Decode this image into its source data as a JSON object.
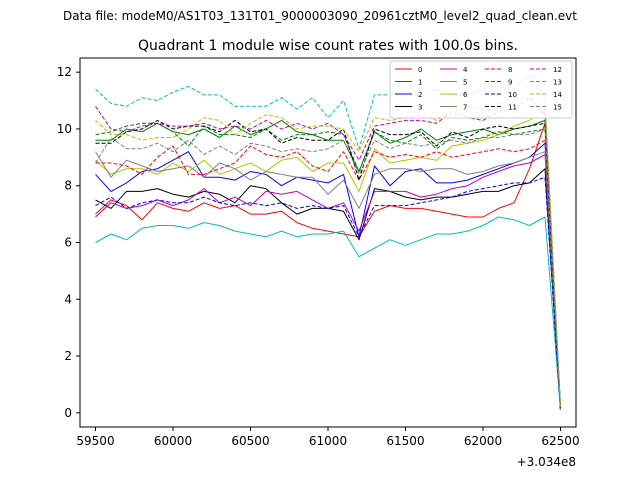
{
  "chart_data": {
    "type": "line",
    "suptitle": "Data file: modeM0/AS1T03_131T01_9000003090_20961cztM0_level2_quad_clean.evt",
    "title": "Quadrant 1 module wise count rates with 100.0s bins.",
    "xlabel": "",
    "ylabel": "",
    "x_offset_label": "+3.034e8",
    "xlim": [
      59400,
      62600
    ],
    "ylim": [
      -0.5,
      12.5
    ],
    "xticks": [
      59500,
      60000,
      60500,
      61000,
      61500,
      62000,
      62500
    ],
    "yticks": [
      0,
      2,
      4,
      6,
      8,
      10,
      12
    ],
    "legend_position": "top-right",
    "x": [
      59500,
      59600,
      59700,
      59800,
      59900,
      60000,
      60100,
      60200,
      60300,
      60400,
      60500,
      60600,
      60700,
      60800,
      60900,
      61000,
      61100,
      61200,
      61300,
      61400,
      61500,
      61600,
      61700,
      61800,
      61900,
      62000,
      62100,
      62200,
      62300,
      62400,
      62500
    ],
    "series": [
      {
        "name": "0",
        "color": "#ff0000",
        "dash": false,
        "values": [
          7.0,
          7.5,
          7.3,
          6.8,
          7.4,
          7.2,
          7.1,
          7.4,
          7.2,
          7.3,
          7.0,
          7.0,
          7.1,
          6.7,
          6.5,
          6.4,
          6.3,
          6.2,
          7.1,
          7.3,
          7.2,
          7.2,
          7.1,
          7.0,
          6.9,
          6.9,
          7.2,
          7.4,
          8.6,
          10.2,
          0.2
        ]
      },
      {
        "name": "1",
        "color": "#008000",
        "dash": false,
        "values": [
          9.6,
          9.6,
          10.0,
          9.9,
          10.2,
          9.9,
          9.8,
          10.0,
          9.7,
          10.1,
          9.8,
          10.0,
          10.3,
          9.9,
          9.8,
          9.6,
          9.6,
          8.5,
          9.9,
          9.5,
          9.7,
          10.0,
          9.6,
          9.8,
          9.9,
          10.0,
          9.8,
          10.0,
          10.1,
          10.3,
          0.2
        ]
      },
      {
        "name": "2",
        "color": "#0000ff",
        "dash": false,
        "values": [
          8.4,
          7.8,
          8.1,
          8.5,
          8.6,
          8.9,
          9.2,
          8.3,
          8.3,
          8.2,
          8.5,
          8.4,
          8.0,
          8.3,
          8.2,
          8.1,
          8.4,
          6.2,
          8.7,
          8.0,
          8.5,
          8.6,
          8.1,
          8.1,
          8.2,
          8.4,
          8.6,
          8.8,
          9.0,
          9.5,
          0.1
        ]
      },
      {
        "name": "3",
        "color": "#000000",
        "dash": false,
        "values": [
          7.5,
          7.2,
          7.8,
          7.8,
          7.9,
          7.7,
          7.6,
          7.8,
          7.7,
          7.4,
          8.0,
          7.9,
          7.4,
          7.0,
          7.2,
          7.2,
          7.1,
          6.1,
          7.9,
          7.8,
          7.6,
          7.5,
          7.6,
          7.6,
          7.7,
          7.8,
          7.8,
          8.0,
          8.1,
          8.6,
          0.1
        ]
      },
      {
        "name": "4",
        "color": "#c000c0",
        "dash": false,
        "values": [
          6.9,
          7.4,
          7.2,
          7.3,
          7.5,
          7.3,
          7.5,
          7.9,
          7.4,
          7.6,
          7.3,
          7.8,
          7.7,
          7.8,
          7.5,
          7.2,
          7.4,
          6.4,
          7.8,
          7.8,
          7.8,
          7.6,
          7.7,
          7.9,
          8.0,
          8.3,
          8.5,
          8.7,
          8.8,
          9.1,
          0.1
        ]
      },
      {
        "name": "5",
        "color": "#00bfbf",
        "dash": false,
        "values": [
          6.0,
          6.3,
          6.1,
          6.5,
          6.6,
          6.6,
          6.5,
          6.7,
          6.6,
          6.4,
          6.3,
          6.2,
          6.4,
          6.2,
          6.3,
          6.3,
          6.4,
          5.5,
          5.8,
          6.1,
          5.9,
          6.1,
          6.3,
          6.3,
          6.4,
          6.6,
          6.9,
          6.8,
          6.6,
          6.9,
          0.1
        ]
      },
      {
        "name": "6",
        "color": "#bfbf00",
        "dash": false,
        "values": [
          8.9,
          8.4,
          8.6,
          8.6,
          8.4,
          8.8,
          8.5,
          8.9,
          8.4,
          8.6,
          8.8,
          8.5,
          8.9,
          9.0,
          8.5,
          8.8,
          8.8,
          7.8,
          9.3,
          8.8,
          8.9,
          9.0,
          8.9,
          9.4,
          9.5,
          9.6,
          9.8,
          10.1,
          10.3,
          10.7,
          0.2
        ]
      },
      {
        "name": "7",
        "color": "#808080",
        "dash": false,
        "values": [
          9.2,
          8.3,
          8.9,
          8.7,
          8.5,
          8.6,
          8.7,
          8.3,
          8.8,
          8.6,
          8.2,
          8.5,
          8.4,
          8.3,
          8.3,
          7.7,
          8.2,
          7.2,
          8.4,
          8.6,
          8.6,
          8.5,
          8.6,
          8.6,
          8.4,
          8.5,
          8.7,
          8.8,
          9.0,
          9.2,
          0.1
        ]
      },
      {
        "name": "8",
        "color": "#ff0000",
        "dash": true,
        "values": [
          8.8,
          8.8,
          8.7,
          8.4,
          9.0,
          9.4,
          8.4,
          8.4,
          8.6,
          8.8,
          9.4,
          9.1,
          9.0,
          9.2,
          8.7,
          8.5,
          9.2,
          8.2,
          9.2,
          9.0,
          9.1,
          9.0,
          9.2,
          9.0,
          9.1,
          9.2,
          9.3,
          9.2,
          9.3,
          9.6,
          0.1
        ]
      },
      {
        "name": "9",
        "color": "#008000",
        "dash": true,
        "values": [
          9.8,
          9.9,
          10.1,
          10.2,
          10.2,
          9.9,
          9.4,
          10.1,
          9.8,
          9.8,
          9.7,
          10.0,
          9.6,
          9.8,
          9.8,
          9.9,
          9.8,
          8.5,
          9.9,
          9.6,
          9.5,
          9.8,
          9.3,
          9.7,
          9.6,
          9.7,
          9.9,
          9.8,
          9.9,
          10.0,
          0.1
        ]
      },
      {
        "name": "10",
        "color": "#0000ff",
        "dash": true,
        "values": [
          7.3,
          7.6,
          7.2,
          7.4,
          7.5,
          7.4,
          7.4,
          7.6,
          7.4,
          7.3,
          7.4,
          7.3,
          7.4,
          7.2,
          7.3,
          7.2,
          7.3,
          6.2,
          7.3,
          7.3,
          7.3,
          7.4,
          7.5,
          7.6,
          7.8,
          7.9,
          8.0,
          8.1,
          8.1,
          8.3,
          0.1
        ]
      },
      {
        "name": "11",
        "color": "#000000",
        "dash": true,
        "values": [
          9.5,
          9.5,
          9.9,
          10.0,
          10.3,
          10.0,
          10.1,
          10.1,
          9.9,
          10.3,
          9.9,
          10.0,
          9.5,
          9.7,
          9.6,
          9.6,
          10.0,
          8.2,
          10.0,
          9.8,
          9.8,
          9.9,
          9.4,
          9.9,
          9.7,
          10.0,
          10.1,
          10.0,
          10.1,
          10.2,
          0.1
        ]
      },
      {
        "name": "12",
        "color": "#c000c0",
        "dash": true,
        "values": [
          10.8,
          10.0,
          9.9,
          10.1,
          10.2,
          10.1,
          10.1,
          10.2,
          10.0,
          10.1,
          10.0,
          10.3,
          10.0,
          10.2,
          10.0,
          10.2,
          9.8,
          8.9,
          10.1,
          10.2,
          10.3,
          10.3,
          10.2,
          10.6,
          10.4,
          10.3,
          10.6,
          10.7,
          11.1,
          10.5,
          0.2
        ]
      },
      {
        "name": "13",
        "color": "#00bfbf",
        "dash": true,
        "values": [
          11.4,
          10.9,
          10.8,
          11.1,
          11.0,
          11.3,
          11.5,
          11.2,
          11.2,
          10.8,
          10.8,
          10.8,
          11.1,
          10.7,
          11.1,
          10.4,
          11.0,
          9.3,
          11.2,
          11.2,
          11.3,
          11.3,
          11.4,
          11.2,
          11.2,
          11.4,
          11.5,
          11.4,
          11.9,
          11.0,
          0.2
        ]
      },
      {
        "name": "14",
        "color": "#bfbf00",
        "dash": true,
        "values": [
          10.3,
          9.8,
          9.8,
          9.6,
          9.7,
          9.7,
          10.0,
          10.4,
          10.3,
          9.8,
          10.2,
          10.5,
          10.4,
          10.0,
          10.1,
          10.1,
          10.0,
          9.2,
          10.4,
          10.3,
          10.4,
          10.5,
          10.3,
          10.6,
          10.7,
          10.8,
          10.9,
          11.0,
          11.1,
          11.0,
          0.2
        ]
      },
      {
        "name": "15",
        "color": "#808080",
        "dash": true,
        "values": [
          8.8,
          9.7,
          9.3,
          9.3,
          9.5,
          9.2,
          9.6,
          9.1,
          9.4,
          9.1,
          9.5,
          9.4,
          9.2,
          9.3,
          9.2,
          9.3,
          9.6,
          8.4,
          9.6,
          9.3,
          9.5,
          9.4,
          9.5,
          9.6,
          9.5,
          9.7,
          9.7,
          9.8,
          9.8,
          10.0,
          0.1
        ]
      }
    ]
  }
}
